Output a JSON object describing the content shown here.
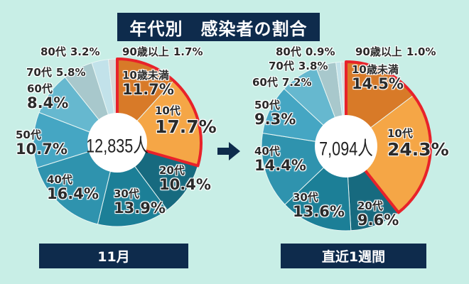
{
  "title": "年代別　感染者の割合",
  "chart_data": [
    {
      "type": "pie",
      "title": "11月",
      "total_label": "12,835人",
      "slices": [
        {
          "label": "10歳未満",
          "value": 11.7,
          "value_label": "11.7%",
          "color": "#d87a28"
        },
        {
          "label": "10代",
          "value": 17.7,
          "value_label": "17.7%",
          "color": "#f5a646"
        },
        {
          "label": "20代",
          "value": 10.4,
          "value_label": "10.4%",
          "color": "#176a7f"
        },
        {
          "label": "30代",
          "value": 13.9,
          "value_label": "13.9%",
          "color": "#1c7f97"
        },
        {
          "label": "40代",
          "value": 16.4,
          "value_label": "16.4%",
          "color": "#2f93ae"
        },
        {
          "label": "50代",
          "value": 10.7,
          "value_label": "10.7%",
          "color": "#45a6c3"
        },
        {
          "label": "60代",
          "value": 8.4,
          "value_label": "8.4%",
          "color": "#66b8cf"
        },
        {
          "label": "70代",
          "value": 5.8,
          "value_label": "5.8%",
          "color": "#a8c8cc"
        },
        {
          "label": "80代",
          "value": 3.2,
          "value_label": "3.2%",
          "color": "#c2e2ea"
        },
        {
          "label": "90歳以上",
          "value": 1.7,
          "value_label": "1.7%",
          "color": "#d8d8d8"
        }
      ],
      "highlighted": [
        "10歳未満",
        "10代"
      ],
      "highlight_color": "#e8222a"
    },
    {
      "type": "pie",
      "title": "直近1週間",
      "total_label": "7,094人",
      "slices": [
        {
          "label": "10歳未満",
          "value": 14.5,
          "value_label": "14.5%",
          "color": "#d87a28"
        },
        {
          "label": "10代",
          "value": 24.3,
          "value_label": "24.3%",
          "color": "#f5a646"
        },
        {
          "label": "20代",
          "value": 9.6,
          "value_label": "9.6%",
          "color": "#176a7f"
        },
        {
          "label": "30代",
          "value": 13.6,
          "value_label": "13.6%",
          "color": "#1c7f97"
        },
        {
          "label": "40代",
          "value": 14.4,
          "value_label": "14.4%",
          "color": "#2f93ae"
        },
        {
          "label": "50代",
          "value": 9.3,
          "value_label": "9.3%",
          "color": "#45a6c3"
        },
        {
          "label": "60代",
          "value": 7.2,
          "value_label": "7.2%",
          "color": "#66b8cf"
        },
        {
          "label": "70代",
          "value": 3.8,
          "value_label": "3.8%",
          "color": "#a8c8cc"
        },
        {
          "label": "80代",
          "value": 0.9,
          "value_label": "0.9%",
          "color": "#c2e2ea"
        },
        {
          "label": "90歳以上",
          "value": 1.0,
          "value_label": "1.0%",
          "color": "#d8d8d8"
        }
      ],
      "highlighted": [
        "10歳未満",
        "10代"
      ],
      "highlight_color": "#e8222a"
    }
  ]
}
